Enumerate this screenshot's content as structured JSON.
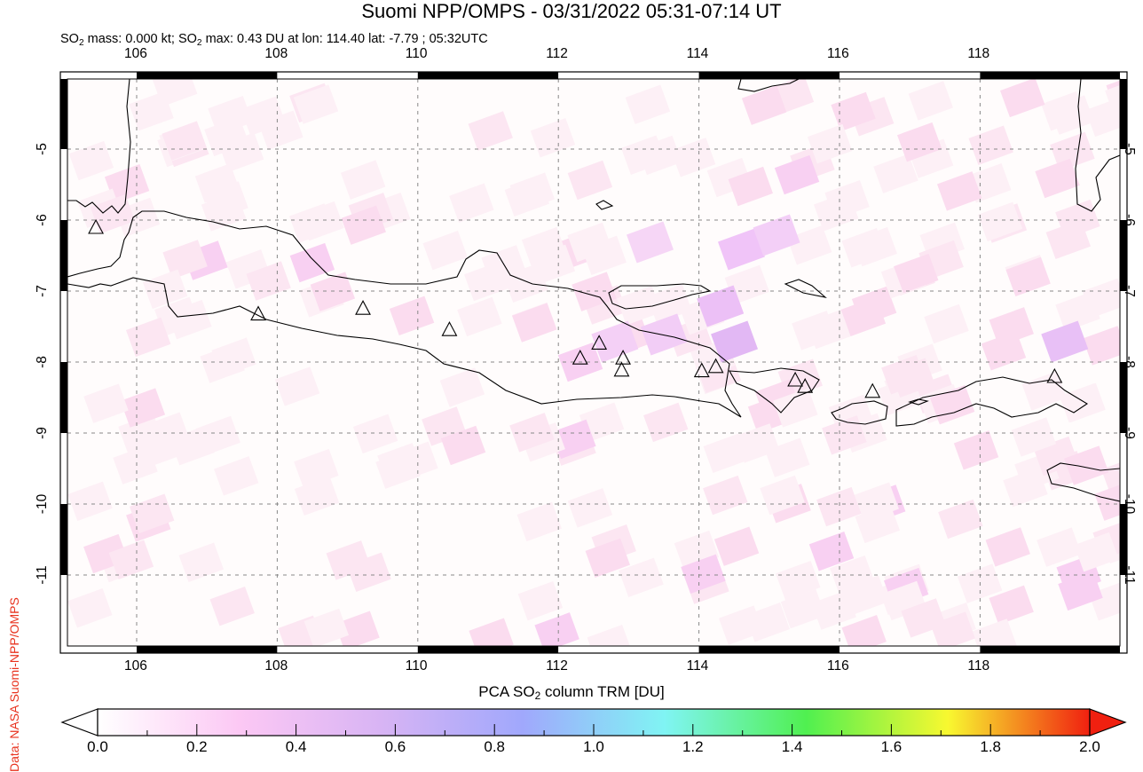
{
  "header": {
    "title": "Suomi NPP/OMPS - 03/31/2022 05:31-07:14 UT",
    "subtitle_parts": [
      "SO",
      "2",
      " mass: 0.000 kt; SO",
      "2",
      " max: 0.43 DU at lon: 114.40 lat: -7.79 ; 05:32UTC"
    ]
  },
  "credit": "Data: NASA Suomi-NPP/OMPS",
  "map": {
    "lon_range": [
      104.9,
      120.0
    ],
    "lat_range": [
      -12.0,
      -4.0
    ],
    "lon_ticks": [
      "106",
      "108",
      "110",
      "112",
      "114",
      "116",
      "118"
    ],
    "lat_ticks": [
      "-5",
      "-6",
      "-7",
      "-8",
      "-9",
      "-10",
      "-11"
    ],
    "grid": true,
    "volcano_marker": "triangle-icon",
    "volcanoes": [
      {
        "lon": 105.42,
        "lat": -6.1
      },
      {
        "lon": 107.73,
        "lat": -7.32
      },
      {
        "lon": 109.22,
        "lat": -7.24
      },
      {
        "lon": 110.45,
        "lat": -7.54
      },
      {
        "lon": 112.31,
        "lat": -7.94
      },
      {
        "lon": 112.58,
        "lat": -7.73
      },
      {
        "lon": 112.92,
        "lat": -7.94
      },
      {
        "lon": 112.9,
        "lat": -8.11
      },
      {
        "lon": 114.04,
        "lat": -8.12
      },
      {
        "lon": 114.24,
        "lat": -8.06
      },
      {
        "lon": 115.37,
        "lat": -8.25
      },
      {
        "lon": 115.51,
        "lat": -8.34
      },
      {
        "lon": 116.47,
        "lat": -8.41
      },
      {
        "lon": 119.06,
        "lat": -8.2
      }
    ]
  },
  "colorbar": {
    "title_parts": [
      "PCA SO",
      "2",
      " column TRM [DU]"
    ],
    "ticks": [
      "0.0",
      "0.2",
      "0.4",
      "0.6",
      "0.8",
      "1.0",
      "1.2",
      "1.4",
      "1.6",
      "1.8",
      "2.0"
    ],
    "range": [
      0.0,
      2.0
    ],
    "colors": [
      "#ffffff",
      "#fcc8f4",
      "#d8b4f4",
      "#a0a8fc",
      "#80f4f4",
      "#50f050",
      "#f8f830",
      "#f02010"
    ]
  }
}
